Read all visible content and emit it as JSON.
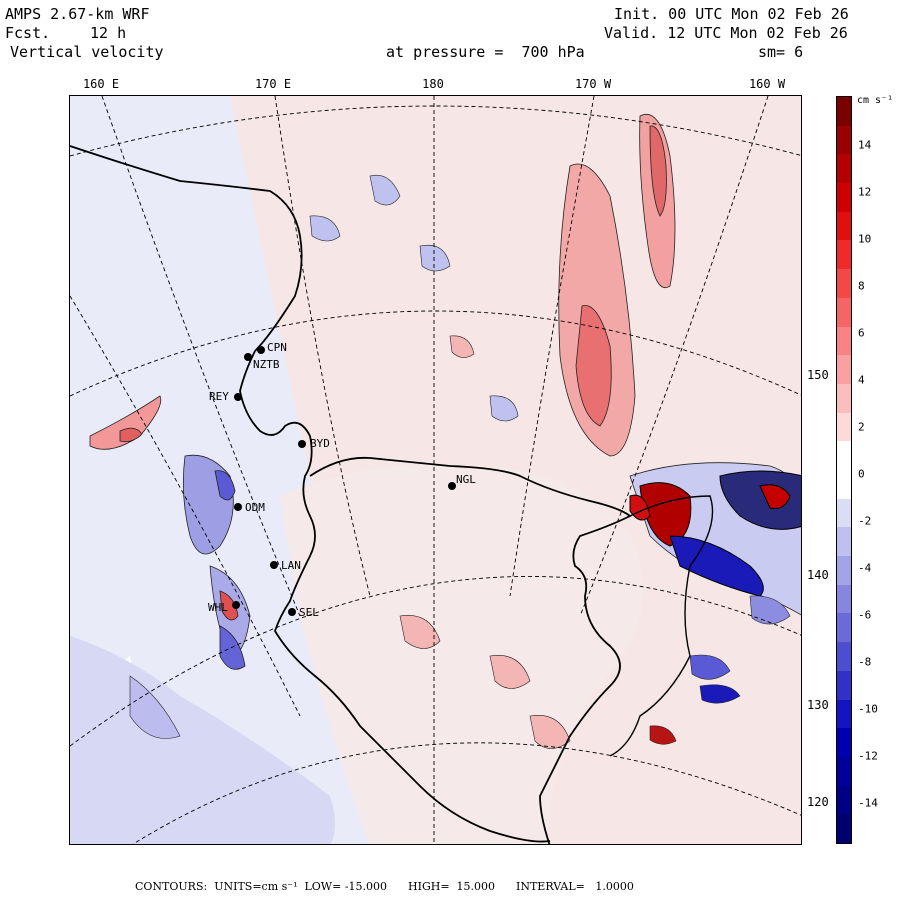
{
  "header": {
    "model": "AMPS 2.67-km WRF",
    "fcst_label": "Fcst.",
    "fcst_value": "12 h",
    "field": "Vertical velocity",
    "level": "at pressure =  700 hPa",
    "init": "Init. 00 UTC Mon 02 Feb 26",
    "valid": "Valid. 12 UTC Mon 02 Feb 26",
    "smooth": "sm= 6"
  },
  "longitude_labels": [
    "160 E",
    "170 E",
    "180",
    "170 W",
    "160 W"
  ],
  "latitude_labels": [
    "150 W",
    "140 W",
    "130 W",
    "120 W"
  ],
  "stations": [
    {
      "id": "CPN"
    },
    {
      "id": "NZTB"
    },
    {
      "id": "REY"
    },
    {
      "id": "BYD"
    },
    {
      "id": "NGL"
    },
    {
      "id": "ODM"
    },
    {
      "id": "LAN"
    },
    {
      "id": "WHL"
    },
    {
      "id": "SEL"
    }
  ],
  "colorbar": {
    "unit": "cm s⁻¹",
    "ticks": [
      "14",
      "12",
      "10",
      "8",
      "6",
      "4",
      "2",
      "0",
      "-2",
      "-4",
      "-6",
      "-8",
      "-10",
      "-12",
      "-14"
    ],
    "colors_top_to_bottom": [
      "#7a0000",
      "#9a0000",
      "#b30000",
      "#cc0000",
      "#e01010",
      "#ee2a2a",
      "#f24848",
      "#f56565",
      "#f78383",
      "#f9a0a0",
      "#fbbdbd",
      "#fdd9d9",
      "#ffffff",
      "#ffffff",
      "#dcdcf7",
      "#c0c0f0",
      "#a3a3e8",
      "#8686e0",
      "#6a6ad8",
      "#4d4dd0",
      "#3131c8",
      "#1414c0",
      "#0000b0",
      "#00009a",
      "#000084",
      "#00006e"
    ]
  },
  "footer": "CONTOURS:  UNITS=cm s⁻¹  LOW= -15.000      HIGH=  15.000      INTERVAL=   1.0000"
}
